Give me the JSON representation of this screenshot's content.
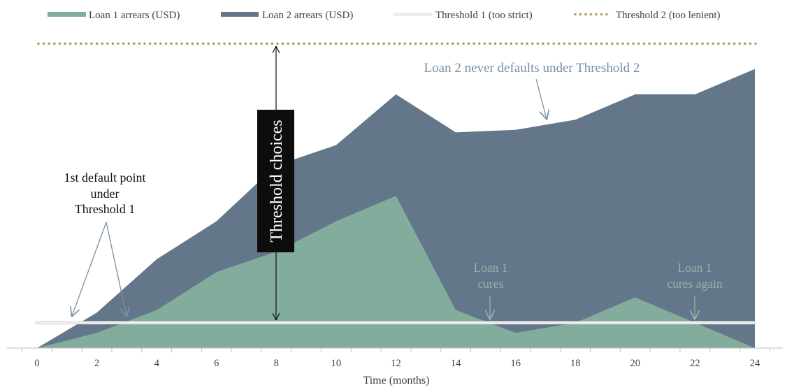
{
  "chart_data": {
    "type": "area",
    "x": [
      0,
      2,
      4,
      6,
      8,
      10,
      12,
      14,
      16,
      18,
      20,
      22,
      24
    ],
    "xlabel": "Time (months)",
    "xlim": [
      0,
      24
    ],
    "ylim": [
      0,
      100
    ],
    "series": [
      {
        "name": "Loan 2 arrears (USD)",
        "color": "#64768a",
        "values": [
          0,
          14,
          35,
          50,
          72,
          80,
          100,
          85,
          86,
          90,
          100,
          100,
          110
        ]
      },
      {
        "name": "Loan 1 arrears (USD)",
        "color": "#82ac9b",
        "values": [
          0,
          6,
          15,
          30,
          38,
          50,
          60,
          15,
          6,
          10,
          20,
          10,
          0
        ]
      }
    ],
    "thresholds": [
      {
        "name": "Threshold 1 (too strict)",
        "value": 10,
        "color": "#ececec",
        "style": "solid"
      },
      {
        "name": "Threshold 2 (too lenient)",
        "value": 120,
        "color": "#b39b55",
        "style": "dotted"
      }
    ],
    "grid": false,
    "legend_position": "top",
    "annotations": {
      "default_point_lines": [
        "1st default point",
        "under",
        "Threshold 1"
      ],
      "never_defaults": "Loan 2 never defaults under Threshold 2",
      "cures_lines": [
        "Loan 1",
        "cures"
      ],
      "cures_again_lines": [
        "Loan 1",
        "cures again"
      ],
      "threshold_choices": "Threshold choices"
    }
  }
}
